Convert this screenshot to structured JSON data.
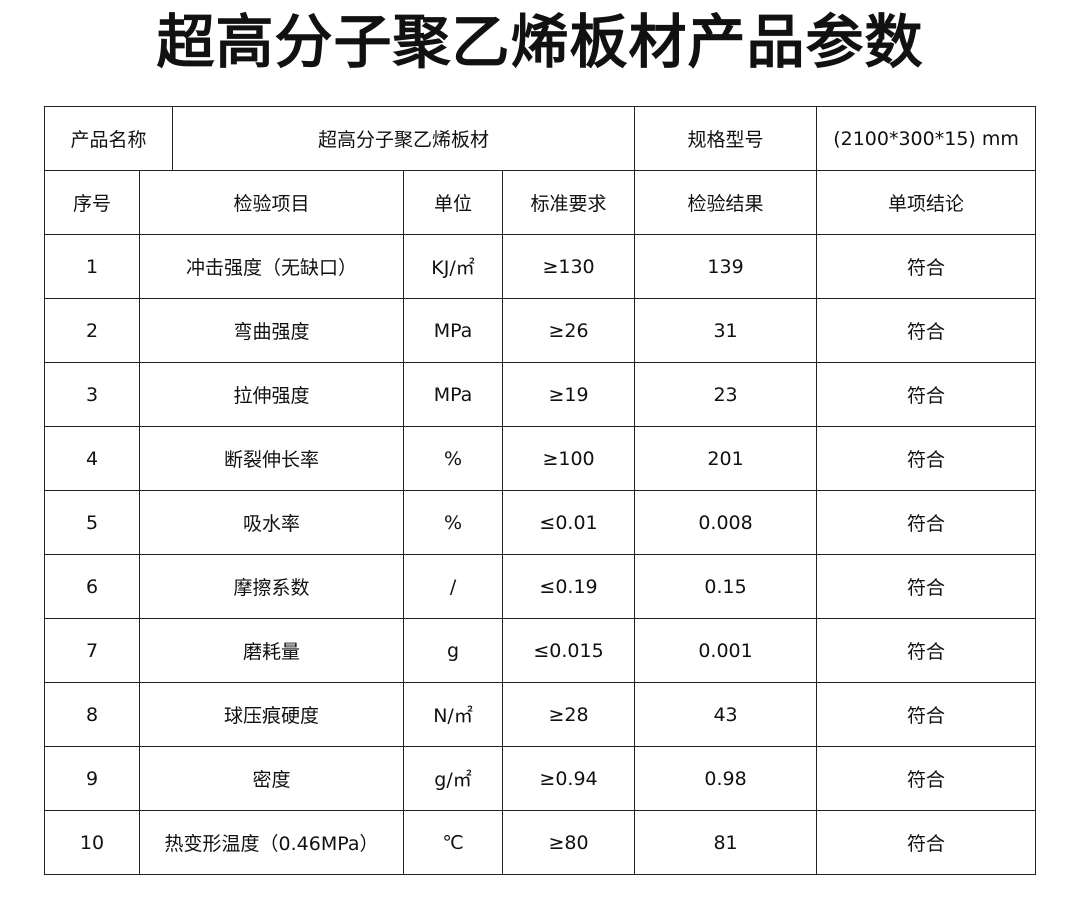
{
  "title": "超高分子聚乙烯板材产品参数",
  "product": {
    "name_label": "产品名称",
    "name_value": "超高分子聚乙烯板材",
    "spec_label": "规格型号",
    "spec_value": "(2100*300*15) mm"
  },
  "headers": [
    "序号",
    "检验项目",
    "单位",
    "标准要求",
    "检验结果",
    "单项结论"
  ],
  "rows": [
    [
      "1",
      "冲击强度（无缺口）",
      "KJ/㎡",
      "≥130",
      "139",
      "符合"
    ],
    [
      "2",
      "弯曲强度",
      "MPa",
      "≥26",
      "31",
      "符合"
    ],
    [
      "3",
      "拉伸强度",
      "MPa",
      "≥19",
      "23",
      "符合"
    ],
    [
      "4",
      "断裂伸长率",
      "%",
      "≥100",
      "201",
      "符合"
    ],
    [
      "5",
      "吸水率",
      "%",
      "≤0.01",
      "0.008",
      "符合"
    ],
    [
      "6",
      "摩擦系数",
      "/",
      "≤0.19",
      "0.15",
      "符合"
    ],
    [
      "7",
      "磨耗量",
      "g",
      "≤0.015",
      "0.001",
      "符合"
    ],
    [
      "8",
      "球压痕硬度",
      "N/㎡",
      "≥28",
      "43",
      "符合"
    ],
    [
      "9",
      "密度",
      "g/㎡",
      "≥0.94",
      "0.98",
      "符合"
    ],
    [
      "10",
      "热变形温度（0.46MPa）",
      "℃",
      "≥80",
      "81",
      "符合"
    ]
  ]
}
